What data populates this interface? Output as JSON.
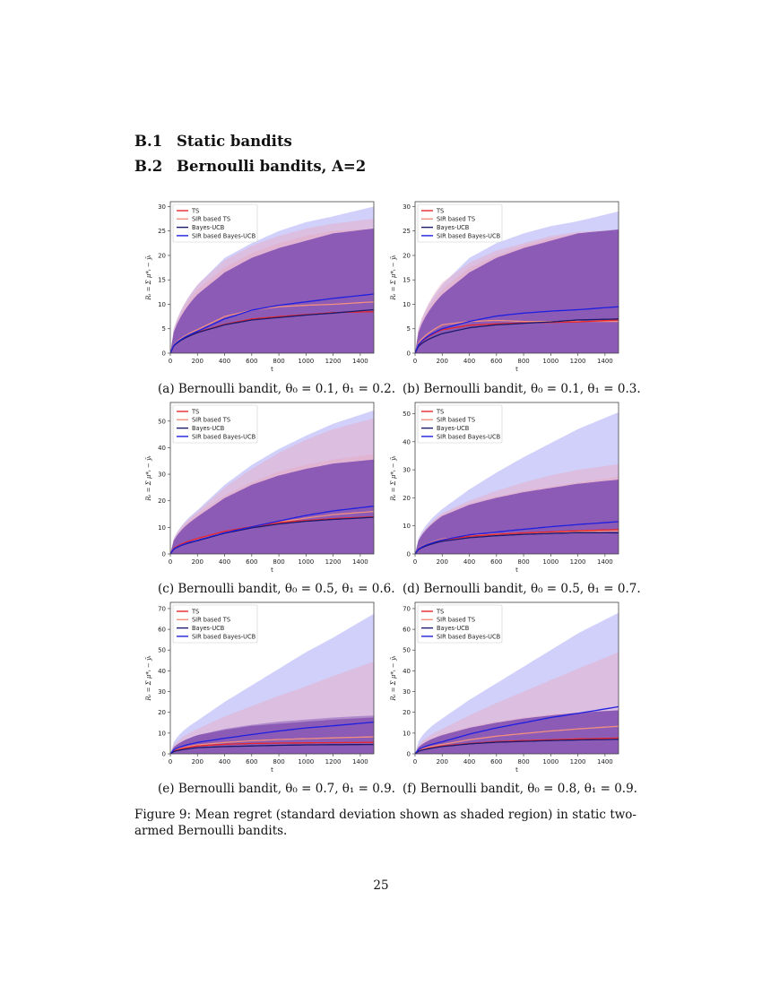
{
  "sections": [
    {
      "number": "B.1",
      "title": "Static bandits"
    },
    {
      "number": "B.2",
      "title": "Bernoulli bandits, A=2"
    }
  ],
  "legend": [
    "TS",
    "SIR based TS",
    "Bayes-UCB",
    "SIR based Bayes-UCB"
  ],
  "colors": {
    "ts": "#e8262b",
    "sir_ts": "#f2907f",
    "bayes_ucb": "#1a1a6e",
    "sir_bayes_ucb": "#1f1fe0",
    "band_blue": "#a9aaf5",
    "band_pink": "#e9a8c0",
    "band_purple": "#8a5cb8"
  },
  "panels": [
    {
      "label": "(a) Bernoulli bandit, θ₀ = 0.1, θ₁ = 0.2."
    },
    {
      "label": "(b) Bernoulli bandit, θ₀ = 0.1, θ₁ = 0.3."
    },
    {
      "label": "(c) Bernoulli bandit, θ₀ = 0.5, θ₁ = 0.6."
    },
    {
      "label": "(d) Bernoulli bandit, θ₀ = 0.5, θ₁ = 0.7."
    },
    {
      "label": "(e) Bernoulli bandit, θ₀ = 0.7, θ₁ = 0.9."
    },
    {
      "label": "(f) Bernoulli bandit, θ₀ = 0.8, θ₁ = 0.9."
    }
  ],
  "figure_caption": "Figure 9: Mean regret (standard deviation shown as shaded region) in static two-armed Bernoulli bandits.",
  "page_number": "25",
  "chart_data": [
    {
      "type": "line",
      "title": "(a) Bernoulli bandit, θ0 = 0.1, θ1 = 0.2",
      "xlabel": "t",
      "ylabel": "R_t = Σ_{τ=0}^{t} μ*_τ − ȳ_τ",
      "x": [
        0,
        200,
        400,
        600,
        800,
        1000,
        1200,
        1500
      ],
      "xlim": [
        0,
        1500
      ],
      "ylim": [
        0,
        31
      ],
      "yticks": [
        0,
        5,
        10,
        15,
        20,
        25,
        30
      ],
      "series": [
        {
          "name": "TS",
          "values": [
            0,
            4.3,
            5.9,
            7.0,
            7.5,
            7.9,
            8.3,
            8.5
          ],
          "upper": [
            0,
            13,
            17.5,
            20.5,
            22.5,
            24,
            25,
            25.5
          ]
        },
        {
          "name": "SIR based TS",
          "values": [
            0,
            4.8,
            7.5,
            8.8,
            9.5,
            9.8,
            10.0,
            10.5
          ],
          "upper": [
            0,
            14,
            19,
            22,
            24,
            25.5,
            26.5,
            27.5
          ]
        },
        {
          "name": "Bayes-UCB",
          "values": [
            0,
            4.2,
            5.8,
            6.8,
            7.3,
            7.8,
            8.2,
            8.9
          ],
          "upper": [
            0,
            12,
            16.5,
            19.5,
            21.5,
            23,
            24.5,
            25.5
          ]
        },
        {
          "name": "SIR based Bayes-UCB",
          "values": [
            0,
            4.5,
            7.0,
            8.8,
            9.8,
            10.5,
            11.2,
            12.1
          ],
          "upper": [
            0,
            14,
            19.5,
            22.5,
            25,
            26.8,
            28,
            30
          ]
        }
      ],
      "legend_position": "upper left",
      "grid": false
    },
    {
      "type": "line",
      "title": "(b) Bernoulli bandit, θ0 = 0.1, θ1 = 0.3",
      "xlabel": "t",
      "ylabel": "R_t = Σ_{τ=0}^{t} μ*_τ − ȳ_τ",
      "x": [
        0,
        200,
        400,
        600,
        800,
        1000,
        1200,
        1500
      ],
      "xlim": [
        0,
        1500
      ],
      "ylim": [
        0,
        31
      ],
      "yticks": [
        0,
        5,
        10,
        15,
        20,
        25,
        30
      ],
      "series": [
        {
          "name": "TS",
          "values": [
            0,
            4.8,
            5.7,
            6.0,
            6.2,
            6.3,
            6.4,
            6.8
          ],
          "upper": [
            0,
            13,
            17.5,
            20,
            22,
            23.5,
            24.5,
            25.3
          ]
        },
        {
          "name": "SIR based TS",
          "values": [
            0,
            5.8,
            6.5,
            6.7,
            6.5,
            6.5,
            6.5,
            6.5
          ],
          "upper": [
            0,
            14.5,
            18.5,
            21,
            22.5,
            24,
            24.8,
            25.3
          ]
        },
        {
          "name": "Bayes-UCB",
          "values": [
            0,
            4.0,
            5.2,
            5.8,
            6.1,
            6.4,
            6.8,
            7.0
          ],
          "upper": [
            0,
            12,
            16.5,
            19.5,
            21.5,
            23,
            24.5,
            25.3
          ]
        },
        {
          "name": "SIR based Bayes-UCB",
          "values": [
            0,
            5.0,
            6.5,
            7.6,
            8.2,
            8.6,
            8.9,
            9.5
          ],
          "upper": [
            0,
            14,
            19.5,
            22.5,
            24.5,
            26,
            27,
            29
          ]
        }
      ],
      "legend_position": "upper left",
      "grid": false
    },
    {
      "type": "line",
      "title": "(c) Bernoulli bandit, θ0 = 0.5, θ1 = 0.6",
      "xlabel": "t",
      "ylabel": "R_t = Σ_{τ=0}^{t} μ*_τ − ȳ_τ",
      "x": [
        0,
        200,
        400,
        600,
        800,
        1000,
        1200,
        1500
      ],
      "xlim": [
        0,
        1500
      ],
      "ylim": [
        0,
        57
      ],
      "yticks": [
        0,
        10,
        20,
        30,
        40,
        50
      ],
      "series": [
        {
          "name": "TS",
          "values": [
            0,
            5.8,
            8.5,
            10.3,
            11.8,
            12.6,
            13.3,
            14.0
          ],
          "upper": [
            0,
            15,
            22,
            27,
            31,
            33.5,
            35.5,
            37.5
          ]
        },
        {
          "name": "SIR based TS",
          "values": [
            0,
            5.5,
            8.3,
            10.3,
            12.0,
            13.5,
            14.8,
            16.0
          ],
          "upper": [
            0,
            16,
            25,
            32,
            38,
            43,
            47,
            51
          ]
        },
        {
          "name": "Bayes-UCB",
          "values": [
            0,
            5.0,
            7.8,
            9.8,
            11.3,
            12.3,
            13.0,
            13.8
          ],
          "upper": [
            0,
            14,
            21,
            26,
            29.5,
            32,
            34,
            35.5
          ]
        },
        {
          "name": "SIR based Bayes-UCB",
          "values": [
            0,
            5.2,
            8.0,
            10.2,
            12.4,
            14.5,
            16.2,
            18.0
          ],
          "upper": [
            0,
            16.5,
            26,
            33.5,
            39.5,
            44.5,
            49,
            54
          ]
        }
      ],
      "legend_position": "upper left",
      "grid": false
    },
    {
      "type": "line",
      "title": "(d) Bernoulli bandit, θ0 = 0.5, θ1 = 0.7",
      "xlabel": "t",
      "ylabel": "R_t = Σ_{τ=0}^{t} μ*_τ − ȳ_τ",
      "x": [
        0,
        200,
        400,
        600,
        800,
        1000,
        1200,
        1500
      ],
      "xlim": [
        0,
        1500
      ],
      "ylim": [
        0,
        54
      ],
      "yticks": [
        0,
        10,
        20,
        30,
        40,
        50
      ],
      "series": [
        {
          "name": "TS",
          "values": [
            0,
            5.0,
            6.3,
            7.0,
            7.5,
            7.9,
            8.3,
            8.7
          ],
          "upper": [
            0,
            14,
            18,
            20.5,
            22.5,
            24,
            25.5,
            27.5
          ]
        },
        {
          "name": "SIR based TS",
          "values": [
            0,
            5.3,
            6.5,
            7.1,
            7.5,
            7.8,
            8.0,
            8.2
          ],
          "upper": [
            0,
            14.5,
            19,
            22.5,
            25.5,
            28,
            30,
            32
          ]
        },
        {
          "name": "Bayes-UCB",
          "values": [
            0,
            4.5,
            5.8,
            6.5,
            7.0,
            7.3,
            7.6,
            7.5
          ],
          "upper": [
            0,
            13.5,
            17.5,
            20,
            22,
            23.5,
            25,
            26.5
          ]
        },
        {
          "name": "SIR based Bayes-UCB",
          "values": [
            0,
            5.0,
            6.8,
            7.8,
            8.8,
            9.7,
            10.5,
            11.5
          ],
          "upper": [
            0,
            16,
            23,
            29,
            34.5,
            39.5,
            44.5,
            50.5
          ]
        }
      ],
      "legend_position": "upper left",
      "grid": false
    },
    {
      "type": "line",
      "title": "(e) Bernoulli bandit, θ0 = 0.7, θ1 = 0.9",
      "xlabel": "t",
      "ylabel": "R_t = Σ_{τ=0}^{t} μ*_τ − ȳ_τ",
      "x": [
        0,
        200,
        400,
        600,
        800,
        1000,
        1200,
        1500
      ],
      "xlim": [
        0,
        1500
      ],
      "ylim": [
        0,
        73
      ],
      "yticks": [
        0,
        10,
        20,
        30,
        40,
        50,
        60,
        70
      ],
      "series": [
        {
          "name": "TS",
          "values": [
            0,
            3.8,
            4.6,
            5.0,
            5.2,
            5.3,
            5.4,
            5.5
          ],
          "upper": [
            0,
            9,
            11.5,
            13.5,
            14.5,
            15.5,
            16.5,
            17.5
          ]
        },
        {
          "name": "SIR based TS",
          "values": [
            0,
            4.3,
            5.5,
            6.3,
            6.9,
            7.3,
            7.7,
            8.2
          ],
          "upper": [
            0,
            12,
            18,
            23,
            28,
            32.5,
            37.5,
            44.5
          ]
        },
        {
          "name": "Bayes-UCB",
          "values": [
            0,
            3.0,
            3.5,
            3.8,
            4.1,
            4.3,
            4.4,
            4.5
          ],
          "upper": [
            0,
            9,
            12,
            14,
            15.5,
            16.5,
            17.5,
            18.5
          ]
        },
        {
          "name": "SIR based Bayes-UCB",
          "values": [
            0,
            5.5,
            7.5,
            9.3,
            11,
            12.5,
            13.5,
            15.3
          ],
          "upper": [
            0,
            16,
            25,
            33,
            41,
            49,
            56,
            67.5
          ]
        }
      ],
      "legend_position": "upper left",
      "grid": false
    },
    {
      "type": "line",
      "title": "(f) Bernoulli bandit, θ0 = 0.8, θ1 = 0.9",
      "xlabel": "t",
      "ylabel": "R_t = Σ_{τ=0}^{t} μ*_τ − ȳ_τ",
      "x": [
        0,
        200,
        400,
        600,
        800,
        1000,
        1200,
        1500
      ],
      "xlim": [
        0,
        1500
      ],
      "ylim": [
        0,
        73
      ],
      "yticks": [
        0,
        10,
        20,
        30,
        40,
        50,
        60,
        70
      ],
      "series": [
        {
          "name": "TS",
          "values": [
            0,
            3.8,
            5.0,
            5.9,
            6.4,
            6.8,
            7.2,
            7.6
          ],
          "upper": [
            0,
            9.5,
            13,
            15.5,
            17.5,
            19,
            20,
            21
          ]
        },
        {
          "name": "SIR based TS",
          "values": [
            0,
            4.5,
            6.8,
            8.5,
            9.8,
            11,
            12,
            13.3
          ],
          "upper": [
            0,
            12,
            18.5,
            24.5,
            30,
            35.5,
            41,
            49
          ]
        },
        {
          "name": "Bayes-UCB",
          "values": [
            0,
            3.5,
            4.8,
            5.6,
            6.0,
            6.4,
            6.7,
            7.0
          ],
          "upper": [
            0,
            9,
            12.5,
            15,
            17,
            18.5,
            19.8,
            21
          ]
        },
        {
          "name": "SIR based Bayes-UCB",
          "values": [
            0,
            5.8,
            9.5,
            12.5,
            15,
            17.5,
            19.5,
            22.7
          ],
          "upper": [
            0,
            17,
            26,
            34,
            42,
            50,
            58,
            68
          ]
        }
      ],
      "legend_position": "upper left",
      "grid": false
    }
  ]
}
